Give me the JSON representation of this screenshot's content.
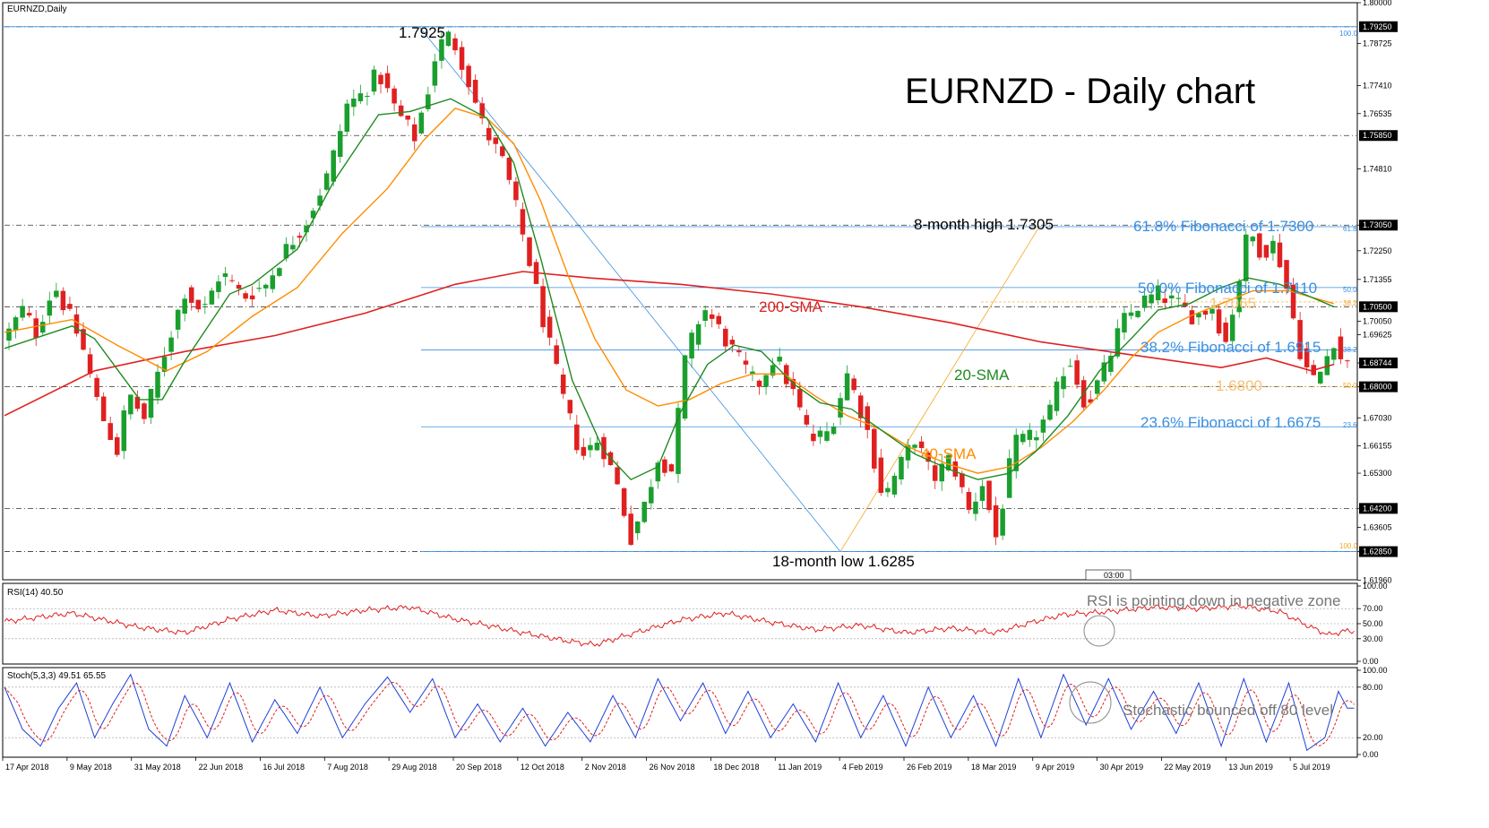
{
  "colors": {
    "bull": "#1a9f2e",
    "bear": "#e02020",
    "sma20": "#1f8a1f",
    "sma40": "#ff8c00",
    "sma200": "#e02020",
    "fib": "#3a8fe0",
    "fibOrange": "#f5a623",
    "rsi": "#e02020",
    "stochK": "#1f3fd6",
    "stochD": "#e02020",
    "axis": "#000000",
    "dash": "#333333"
  },
  "chart_data": {
    "type": "candlestick",
    "symbol_label": "EURNZD,Daily",
    "title": "EURNZD - Daily chart",
    "ylim": [
      1.6197,
      1.8
    ],
    "y_ticks": [
      "1.80000",
      "1.78725",
      "1.77410",
      "1.76535",
      "1.74810",
      "1.73050",
      "1.72250",
      "1.71355",
      "1.70050",
      "1.69625",
      "1.68744",
      "1.68000",
      "1.67030",
      "1.66155",
      "1.65300",
      "1.64200",
      "1.63605",
      "1.62850",
      "1.61960"
    ],
    "highlighted_ticks": [
      "1.79250",
      "1.75850",
      "1.73050",
      "1.70500",
      "1.68744",
      "1.68000",
      "1.64200",
      "1.62850"
    ],
    "x_ticks": [
      "17 Apr 2018",
      "9 May 2018",
      "31 May 2018",
      "22 Jun 2018",
      "16 Jul 2018",
      "7 Aug 2018",
      "29 Aug 2018",
      "20 Sep 2018",
      "12 Oct 2018",
      "2 Nov 2018",
      "26 Nov 2018",
      "18 Dec 2018",
      "11 Jan 2019",
      "4 Feb 2019",
      "26 Feb 2019",
      "18 Mar 2019",
      "9 Apr 2019",
      "30 Apr 2019",
      "22 May 2019",
      "13 Jun 2019",
      "5 Jul 2019"
    ],
    "path_points": [
      [
        0,
        1.695
      ],
      [
        8,
        1.704
      ],
      [
        14,
        1.697
      ],
      [
        22,
        1.712
      ],
      [
        34,
        1.694
      ],
      [
        42,
        1.673
      ],
      [
        50,
        1.66
      ],
      [
        55,
        1.678
      ],
      [
        62,
        1.67
      ],
      [
        72,
        1.693
      ],
      [
        80,
        1.71
      ],
      [
        88,
        1.703
      ],
      [
        96,
        1.716
      ],
      [
        106,
        1.708
      ],
      [
        116,
        1.712
      ],
      [
        124,
        1.722
      ],
      [
        134,
        1.732
      ],
      [
        144,
        1.747
      ],
      [
        152,
        1.768
      ],
      [
        158,
        1.771
      ],
      [
        166,
        1.778
      ],
      [
        174,
        1.766
      ],
      [
        182,
        1.758
      ],
      [
        188,
        1.773
      ],
      [
        192,
        1.786
      ],
      [
        198,
        1.79
      ],
      [
        204,
        1.78
      ],
      [
        212,
        1.762
      ],
      [
        222,
        1.749
      ],
      [
        232,
        1.722
      ],
      [
        240,
        1.698
      ],
      [
        248,
        1.676
      ],
      [
        256,
        1.658
      ],
      [
        264,
        1.664
      ],
      [
        272,
        1.649
      ],
      [
        278,
        1.633
      ],
      [
        284,
        1.643
      ],
      [
        290,
        1.658
      ],
      [
        296,
        1.654
      ],
      [
        302,
        1.688
      ],
      [
        310,
        1.705
      ],
      [
        318,
        1.697
      ],
      [
        326,
        1.688
      ],
      [
        334,
        1.68
      ],
      [
        342,
        1.69
      ],
      [
        350,
        1.678
      ],
      [
        358,
        1.663
      ],
      [
        366,
        1.666
      ],
      [
        374,
        1.684
      ],
      [
        382,
        1.669
      ],
      [
        390,
        1.645
      ],
      [
        398,
        1.656
      ],
      [
        404,
        1.664
      ],
      [
        412,
        1.651
      ],
      [
        420,
        1.658
      ],
      [
        428,
        1.641
      ],
      [
        434,
        1.65
      ],
      [
        440,
        1.633
      ],
      [
        448,
        1.662
      ],
      [
        456,
        1.664
      ],
      [
        464,
        1.672
      ],
      [
        472,
        1.69
      ],
      [
        480,
        1.674
      ],
      [
        488,
        1.685
      ],
      [
        496,
        1.7
      ],
      [
        504,
        1.706
      ],
      [
        512,
        1.709
      ],
      [
        520,
        1.706
      ],
      [
        528,
        1.702
      ],
      [
        536,
        1.705
      ],
      [
        542,
        1.694
      ],
      [
        548,
        1.714
      ],
      [
        552,
        1.729
      ],
      [
        558,
        1.722
      ],
      [
        564,
        1.725
      ],
      [
        570,
        1.708
      ],
      [
        576,
        1.688
      ],
      [
        582,
        1.681
      ],
      [
        586,
        1.688
      ],
      [
        590,
        1.695
      ],
      [
        594,
        1.687
      ]
    ],
    "sma_points": {
      "sma20": [
        [
          0,
          1.692
        ],
        [
          30,
          1.699
        ],
        [
          40,
          1.695
        ],
        [
          60,
          1.676
        ],
        [
          70,
          1.676
        ],
        [
          80,
          1.688
        ],
        [
          100,
          1.709
        ],
        [
          110,
          1.712
        ],
        [
          130,
          1.723
        ],
        [
          146,
          1.744
        ],
        [
          166,
          1.765
        ],
        [
          180,
          1.766
        ],
        [
          198,
          1.77
        ],
        [
          214,
          1.764
        ],
        [
          226,
          1.75
        ],
        [
          238,
          1.72
        ],
        [
          252,
          1.682
        ],
        [
          266,
          1.66
        ],
        [
          278,
          1.651
        ],
        [
          290,
          1.655
        ],
        [
          300,
          1.672
        ],
        [
          312,
          1.687
        ],
        [
          324,
          1.693
        ],
        [
          336,
          1.691
        ],
        [
          350,
          1.681
        ],
        [
          362,
          1.675
        ],
        [
          376,
          1.673
        ],
        [
          390,
          1.666
        ],
        [
          404,
          1.659
        ],
        [
          420,
          1.654
        ],
        [
          432,
          1.651
        ],
        [
          446,
          1.653
        ],
        [
          458,
          1.66
        ],
        [
          472,
          1.671
        ],
        [
          486,
          1.685
        ],
        [
          500,
          1.695
        ],
        [
          512,
          1.704
        ],
        [
          526,
          1.706
        ],
        [
          540,
          1.711
        ],
        [
          552,
          1.714
        ],
        [
          566,
          1.712
        ],
        [
          580,
          1.708
        ],
        [
          590,
          1.705
        ]
      ],
      "sma40": [
        [
          0,
          1.697
        ],
        [
          30,
          1.701
        ],
        [
          50,
          1.693
        ],
        [
          72,
          1.685
        ],
        [
          90,
          1.691
        ],
        [
          110,
          1.702
        ],
        [
          130,
          1.711
        ],
        [
          150,
          1.728
        ],
        [
          170,
          1.742
        ],
        [
          186,
          1.757
        ],
        [
          200,
          1.767
        ],
        [
          214,
          1.764
        ],
        [
          226,
          1.756
        ],
        [
          238,
          1.738
        ],
        [
          250,
          1.715
        ],
        [
          262,
          1.695
        ],
        [
          276,
          1.679
        ],
        [
          290,
          1.674
        ],
        [
          304,
          1.676
        ],
        [
          318,
          1.681
        ],
        [
          332,
          1.684
        ],
        [
          346,
          1.684
        ],
        [
          360,
          1.677
        ],
        [
          374,
          1.671
        ],
        [
          388,
          1.667
        ],
        [
          402,
          1.661
        ],
        [
          418,
          1.656
        ],
        [
          432,
          1.653
        ],
        [
          446,
          1.655
        ],
        [
          460,
          1.661
        ],
        [
          474,
          1.669
        ],
        [
          488,
          1.679
        ],
        [
          500,
          1.689
        ],
        [
          512,
          1.697
        ],
        [
          526,
          1.702
        ],
        [
          540,
          1.706
        ],
        [
          554,
          1.71
        ],
        [
          570,
          1.71
        ],
        [
          590,
          1.706
        ]
      ],
      "sma200": [
        [
          0,
          1.671
        ],
        [
          40,
          1.685
        ],
        [
          80,
          1.691
        ],
        [
          120,
          1.696
        ],
        [
          160,
          1.703
        ],
        [
          200,
          1.712
        ],
        [
          230,
          1.716
        ],
        [
          260,
          1.714
        ],
        [
          300,
          1.712
        ],
        [
          340,
          1.709
        ],
        [
          380,
          1.705
        ],
        [
          420,
          1.7
        ],
        [
          460,
          1.694
        ],
        [
          500,
          1.69
        ],
        [
          540,
          1.686
        ],
        [
          560,
          1.689
        ],
        [
          580,
          1.685
        ],
        [
          590,
          1.687
        ]
      ]
    },
    "rsi": {
      "label": "RSI(14) 40.50",
      "ticks": [
        "100.00",
        "70.00",
        "50.00",
        "30.00",
        "0.00"
      ],
      "points": [
        [
          0,
          53
        ],
        [
          30,
          64
        ],
        [
          60,
          45
        ],
        [
          80,
          38
        ],
        [
          100,
          56
        ],
        [
          120,
          68
        ],
        [
          140,
          60
        ],
        [
          160,
          68
        ],
        [
          180,
          72
        ],
        [
          200,
          56
        ],
        [
          214,
          48
        ],
        [
          230,
          38
        ],
        [
          250,
          27
        ],
        [
          262,
          22
        ],
        [
          280,
          38
        ],
        [
          300,
          55
        ],
        [
          320,
          64
        ],
        [
          340,
          52
        ],
        [
          360,
          42
        ],
        [
          380,
          48
        ],
        [
          400,
          38
        ],
        [
          420,
          44
        ],
        [
          440,
          38
        ],
        [
          456,
          52
        ],
        [
          470,
          62
        ],
        [
          490,
          66
        ],
        [
          510,
          72
        ],
        [
          530,
          70
        ],
        [
          548,
          74
        ],
        [
          566,
          66
        ],
        [
          580,
          45
        ],
        [
          588,
          35
        ],
        [
          594,
          40
        ]
      ]
    },
    "stoch": {
      "label": "Stoch(5,3,3) 49.51 65.55",
      "ticks": [
        "100.00",
        "80.00",
        "20.00",
        "0.00"
      ],
      "points": [
        [
          0,
          80
        ],
        [
          8,
          30
        ],
        [
          16,
          10
        ],
        [
          24,
          55
        ],
        [
          32,
          85
        ],
        [
          40,
          20
        ],
        [
          48,
          60
        ],
        [
          56,
          95
        ],
        [
          64,
          30
        ],
        [
          72,
          10
        ],
        [
          80,
          70
        ],
        [
          90,
          20
        ],
        [
          100,
          85
        ],
        [
          110,
          15
        ],
        [
          120,
          65
        ],
        [
          130,
          25
        ],
        [
          140,
          80
        ],
        [
          150,
          20
        ],
        [
          160,
          60
        ],
        [
          170,
          92
        ],
        [
          180,
          50
        ],
        [
          190,
          90
        ],
        [
          200,
          20
        ],
        [
          210,
          60
        ],
        [
          220,
          15
        ],
        [
          230,
          55
        ],
        [
          240,
          10
        ],
        [
          250,
          50
        ],
        [
          260,
          15
        ],
        [
          270,
          70
        ],
        [
          280,
          20
        ],
        [
          290,
          90
        ],
        [
          300,
          40
        ],
        [
          310,
          85
        ],
        [
          320,
          25
        ],
        [
          330,
          75
        ],
        [
          340,
          20
        ],
        [
          350,
          60
        ],
        [
          360,
          15
        ],
        [
          370,
          85
        ],
        [
          380,
          20
        ],
        [
          390,
          70
        ],
        [
          400,
          10
        ],
        [
          410,
          80
        ],
        [
          420,
          20
        ],
        [
          430,
          70
        ],
        [
          440,
          10
        ],
        [
          450,
          90
        ],
        [
          460,
          20
        ],
        [
          470,
          95
        ],
        [
          480,
          35
        ],
        [
          490,
          90
        ],
        [
          500,
          30
        ],
        [
          510,
          75
        ],
        [
          520,
          25
        ],
        [
          530,
          85
        ],
        [
          540,
          10
        ],
        [
          550,
          90
        ],
        [
          560,
          15
        ],
        [
          570,
          85
        ],
        [
          578,
          5
        ],
        [
          586,
          20
        ],
        [
          592,
          75
        ],
        [
          596,
          55
        ]
      ]
    },
    "annotations": {
      "high": "1.7925",
      "low": "18-month low 1.6285",
      "eight_month": "8-month high 1.7305",
      "fib618": "61.8% Fibonacci of 1.7300",
      "fib50": "50.0% Fibonacci of 1.7110",
      "fib382": "38.2% Fibonacci of 1.6915",
      "fib236": "23.6% Fibonacci of 1.6675",
      "lvl7065": "1.7065",
      "lvl6800": "1.6800",
      "sma200": "200-SMA",
      "sma20": "20-SMA",
      "sma40": "40-SMA",
      "rsi_note": "RSI is pointing down in negative zone",
      "stoch_note": "Stochastic bounced off 80 level",
      "tag_100": "100.0",
      "tag_618": "61.8",
      "tag_50": "50.0",
      "tag_382": "38.2",
      "tag_236": "23.6",
      "tag_or_382": "38.2",
      "tag_or_50": "50.0",
      "tag_bottom": "100.0",
      "timer": "03:00"
    }
  }
}
